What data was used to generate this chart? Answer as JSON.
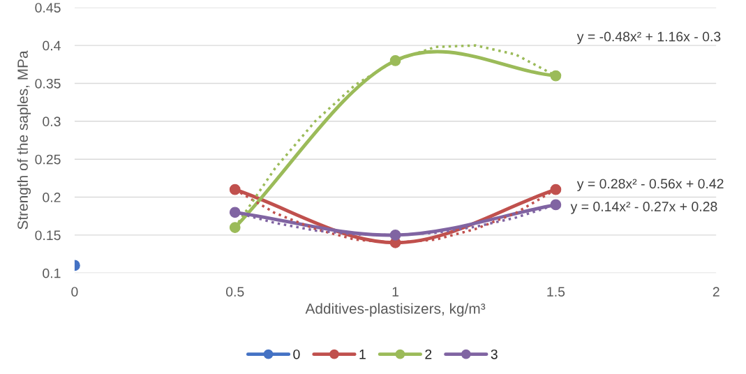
{
  "chart_data": {
    "type": "line",
    "xlabel": "Additives-plastisizers, kg/m³",
    "ylabel": "Strength of the saples, MPa",
    "xlim": [
      0,
      2
    ],
    "xticks": [
      0,
      0.5,
      1,
      1.5,
      2
    ],
    "ylim": [
      0.1,
      0.45
    ],
    "yticks": [
      {
        "value": 0.1,
        "label": "0.1"
      },
      {
        "value": 0.15,
        "label": "0.15"
      },
      {
        "value": 0.2,
        "label": "0.2"
      },
      {
        "value": 0.25,
        "label": "0.25"
      },
      {
        "value": 0.3,
        "label": "0.3"
      },
      {
        "value": 0.35,
        "label": "0.35"
      },
      {
        "value": 0.4,
        "label": "0.4"
      },
      {
        "value": 0.45,
        "label": "0.45"
      }
    ],
    "grid": "y",
    "legend": "bottom",
    "marker": "circle",
    "line_style": "solid",
    "series": [
      {
        "name": "0",
        "color": "#4472c4",
        "x": [
          0
        ],
        "values": [
          0.11
        ]
      },
      {
        "name": "1",
        "color": "#c0504d",
        "x": [
          0.5,
          1,
          1.5
        ],
        "values": [
          0.21,
          0.14,
          0.21
        ]
      },
      {
        "name": "2",
        "color": "#9bbb59",
        "x": [
          0.5,
          1,
          1.5
        ],
        "values": [
          0.16,
          0.38,
          0.36
        ]
      },
      {
        "name": "3",
        "color": "#8064a2",
        "x": [
          0.5,
          1,
          1.5
        ],
        "values": [
          0.18,
          0.15,
          0.19
        ]
      },
      {
        "color": "#c0504d",
        "x": [
          0.5,
          0.625,
          0.75,
          0.875,
          1,
          1.125,
          1.25,
          1.375,
          1.5
        ],
        "values": [
          0.21,
          0.179,
          0.158,
          0.144,
          0.14,
          0.144,
          0.158,
          0.179,
          0.21
        ],
        "marker": "none",
        "line_style": "dotted"
      },
      {
        "color": "#9bbb59",
        "x": [
          0.5,
          0.625,
          0.75,
          0.875,
          1,
          1.125,
          1.25,
          1.375,
          1.5
        ],
        "values": [
          0.16,
          0.238,
          0.3,
          0.348,
          0.38,
          0.398,
          0.4,
          0.388,
          0.36
        ],
        "marker": "none",
        "line_style": "dotted"
      },
      {
        "color": "#8064a2",
        "x": [
          0.5,
          0.625,
          0.75,
          0.875,
          1,
          1.125,
          1.25,
          1.375,
          1.5
        ],
        "values": [
          0.18,
          0.166,
          0.156,
          0.151,
          0.15,
          0.153,
          0.161,
          0.173,
          0.19
        ],
        "marker": "none",
        "line_style": "dotted"
      }
    ],
    "annotations": [
      "y = 0.28x² - 0.56x + 0.42",
      "y = -0.48x² + 1.16x - 0.3",
      "y = 0.14x² - 0.27x + 0.28"
    ]
  }
}
